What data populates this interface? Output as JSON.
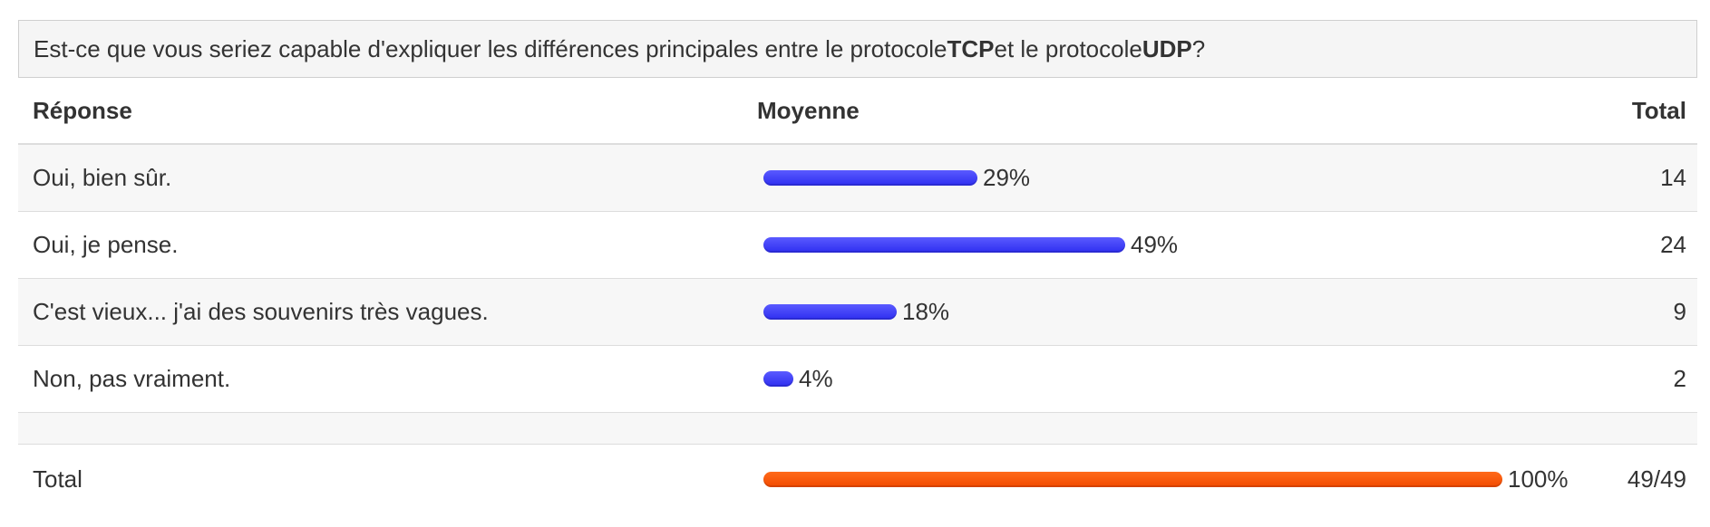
{
  "question": {
    "prefix": "Est-ce que vous seriez capable d'expliquer les différences principales entre le protocole ",
    "bold1": "TCP",
    "middle": " et le protocole ",
    "bold2": "UDP",
    "suffix": "?"
  },
  "table": {
    "headers": {
      "response": "Réponse",
      "average": "Moyenne",
      "total": "Total"
    },
    "rows": [
      {
        "label": "Oui, bien sûr.",
        "percent_text": "29%",
        "percent": 29,
        "count": "14"
      },
      {
        "label": "Oui, je pense.",
        "percent_text": "49%",
        "percent": 49,
        "count": "24"
      },
      {
        "label": "C'est vieux... j'ai des souvenirs très vagues.",
        "percent_text": "18%",
        "percent": 18,
        "count": "9"
      },
      {
        "label": "Non, pas vraiment.",
        "percent_text": "4%",
        "percent": 4,
        "count": "2"
      }
    ],
    "total": {
      "label": "Total",
      "percent_text": "100%",
      "percent": 100,
      "count": "49/49"
    }
  },
  "colors": {
    "bar_blue": "#3b3bf5",
    "bar_orange": "#f55200",
    "stripe": "#f7f7f7",
    "border": "#dddddd"
  }
}
